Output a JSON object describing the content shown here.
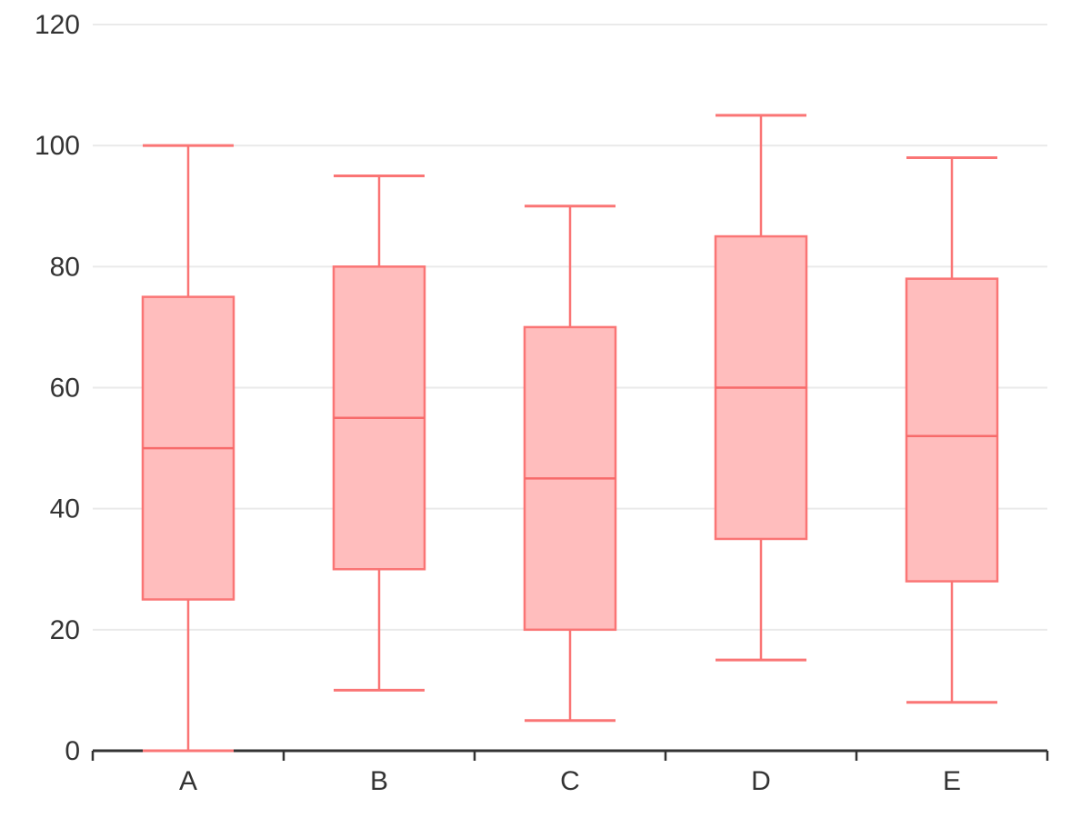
{
  "chart_data": {
    "type": "box",
    "title": "",
    "xlabel": "",
    "ylabel": "",
    "categories": [
      "A",
      "B",
      "C",
      "D",
      "E"
    ],
    "series": [
      {
        "name": "A",
        "min": 0,
        "q1": 25,
        "median": 50,
        "q3": 75,
        "max": 100
      },
      {
        "name": "B",
        "min": 10,
        "q1": 30,
        "median": 55,
        "q3": 80,
        "max": 95
      },
      {
        "name": "C",
        "min": 5,
        "q1": 20,
        "median": 45,
        "q3": 70,
        "max": 90
      },
      {
        "name": "D",
        "min": 15,
        "q1": 35,
        "median": 60,
        "q3": 85,
        "max": 105
      },
      {
        "name": "E",
        "min": 8,
        "q1": 28,
        "median": 52,
        "q3": 78,
        "max": 98
      }
    ],
    "y_ticks": [
      0,
      20,
      40,
      60,
      80,
      100,
      120
    ],
    "ylim": [
      0,
      120
    ],
    "grid": "horizontal",
    "legend": "none",
    "colors": {
      "box_stroke": "#fa7575",
      "box_fill": "#ffbdbd",
      "median_stroke": "#f76b6b",
      "gridline": "#eaeaea",
      "axis": "#333333",
      "tick_label": "#333333",
      "background": "#ffffff"
    }
  }
}
